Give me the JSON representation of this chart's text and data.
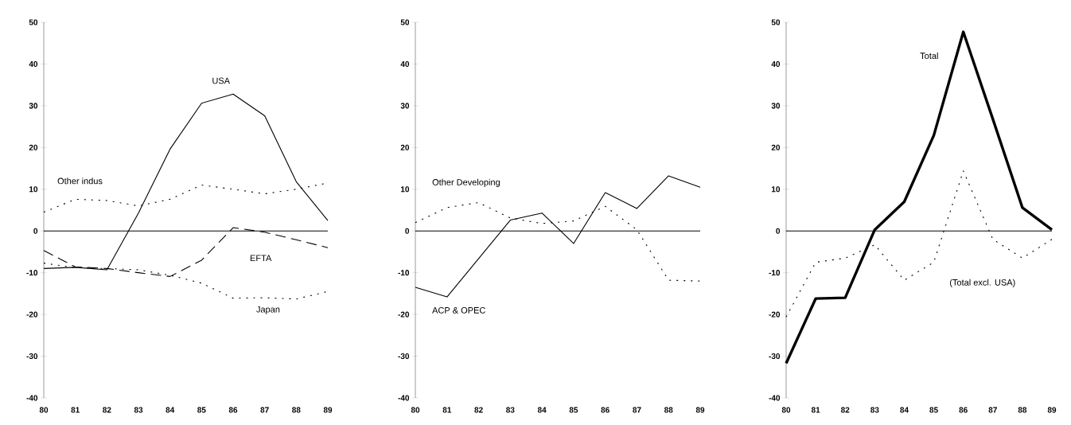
{
  "chart_data": [
    {
      "type": "line",
      "x": [
        80,
        81,
        82,
        83,
        84,
        85,
        86,
        87,
        88,
        89
      ],
      "xlim": [
        80,
        89
      ],
      "xticks": [
        80,
        81,
        82,
        83,
        84,
        85,
        86,
        87,
        88,
        89
      ],
      "ylim": [
        -40,
        50
      ],
      "yticks": [
        -40,
        -30,
        -20,
        -10,
        0,
        10,
        20,
        30,
        40,
        50
      ],
      "series": [
        {
          "name": "USA",
          "color": "#000000",
          "line_style": "solid",
          "values": [
            -9,
            -8.7,
            -9.3,
            4.3,
            19.6,
            30.6,
            32.8,
            27.6,
            11.8,
            2.5
          ]
        },
        {
          "name": "Other indus",
          "color": "#000000",
          "line_style": "dotted",
          "values": [
            4.5,
            7.6,
            7.3,
            6,
            7.6,
            11,
            10,
            8.9,
            10,
            11.5
          ]
        },
        {
          "name": "EFTA",
          "color": "#000000",
          "line_style": "dashed",
          "values": [
            -4.7,
            -8.6,
            -9,
            -10,
            -10.9,
            -7,
            0.8,
            -0.3,
            -2.1,
            -4
          ]
        },
        {
          "name": "Japan",
          "color": "#000000",
          "line_style": "dotted",
          "values": [
            -7.7,
            -8.8,
            -9,
            -9.3,
            -10.6,
            -12.5,
            -16.1,
            -16,
            -16.3,
            -14.5
          ]
        }
      ]
    },
    {
      "type": "line",
      "x": [
        80,
        81,
        82,
        83,
        84,
        85,
        86,
        87,
        88,
        89
      ],
      "xlim": [
        80,
        89
      ],
      "xticks": [
        80,
        81,
        82,
        83,
        84,
        85,
        86,
        87,
        88,
        89
      ],
      "ylim": [
        -40,
        50
      ],
      "yticks": [
        -40,
        -30,
        -20,
        -10,
        0,
        10,
        20,
        30,
        40,
        50
      ],
      "series": [
        {
          "name": "ACP & OPEC",
          "color": "#000000",
          "line_style": "solid",
          "values": [
            -13.5,
            -15.8,
            -6.6,
            2.6,
            4.3,
            -3,
            9.2,
            5.4,
            13.2,
            10.5
          ]
        },
        {
          "name": "Other Developing",
          "color": "#000000",
          "line_style": "dotted",
          "values": [
            2,
            5.6,
            6.8,
            3.1,
            1.8,
            2.4,
            5.9,
            0.3,
            -11.8,
            -12
          ]
        }
      ]
    },
    {
      "type": "line",
      "x": [
        80,
        81,
        82,
        83,
        84,
        85,
        86,
        87,
        88,
        89
      ],
      "xlim": [
        80,
        89
      ],
      "xticks": [
        80,
        81,
        82,
        83,
        84,
        85,
        86,
        87,
        88,
        89
      ],
      "ylim": [
        -40,
        50
      ],
      "yticks": [
        -40,
        -30,
        -20,
        -10,
        0,
        10,
        20,
        30,
        40,
        50
      ],
      "series": [
        {
          "name": "Total",
          "color": "#000000",
          "line_style": "solid",
          "values": [
            -31.7,
            -16.2,
            -16,
            0.3,
            7,
            22.9,
            47.7,
            26.8,
            5.6,
            0.3
          ]
        },
        {
          "name": "(Total excl. USA)",
          "color": "#000000",
          "line_style": "dotted",
          "values": [
            -20.6,
            -7.5,
            -6.5,
            -3.3,
            -11.8,
            -7.5,
            14.4,
            -2,
            -6.5,
            -2
          ]
        }
      ]
    }
  ]
}
